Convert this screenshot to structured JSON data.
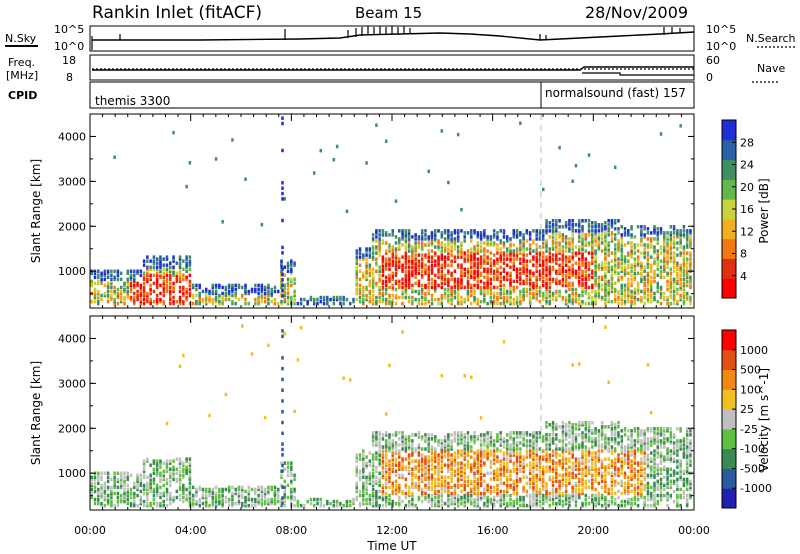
{
  "header": {
    "station": "Rankin Inlet (fitACF)",
    "beam": "Beam 15",
    "date": "28/Nov/2009"
  },
  "panels": {
    "nsky": {
      "left_label": "N.Sky",
      "right_label": "N.Search",
      "ticks_left": [
        "10^5",
        "10^0"
      ],
      "ticks_right": [
        "10^5",
        "10^0"
      ]
    },
    "freq": {
      "left_label_1": "Freq.",
      "left_label_2": "[MHz]",
      "right_label": "Nave",
      "ticks_left": [
        "18",
        "8"
      ],
      "ticks_right": [
        "60",
        "0"
      ]
    },
    "cpid": {
      "label": "CPID",
      "segments": [
        {
          "name": "themis 3300",
          "start_hour": 0
        },
        {
          "name": "normalsound (fast) 157",
          "start_hour": 18
        }
      ]
    }
  },
  "colors": {
    "power_scale": [
      "#1f2fd6",
      "#2a60a8",
      "#3f8f60",
      "#62b84a",
      "#c8d23a",
      "#f0b020",
      "#f07a10",
      "#e03010",
      "#ff0000"
    ],
    "velocity_scale": [
      "#2020b0",
      "#2a5aa0",
      "#3a8a55",
      "#60c040",
      "#c0c0c0",
      "#f0c020",
      "#f08a10",
      "#e05010",
      "#ff0000"
    ]
  },
  "chart_data": [
    {
      "type": "heatmap",
      "name": "power",
      "xlabel": "",
      "ylabel": "Slant Range [km]",
      "colorbar_label": "Power [dB]",
      "colorbar_ticks": [
        "28",
        "24",
        "20",
        "16",
        "12",
        "8",
        "4"
      ],
      "x_ticks": [
        "00:00",
        "04:00",
        "08:00",
        "12:00",
        "16:00",
        "20:00",
        "00:00"
      ],
      "y_ticks": [
        "1000",
        "2000",
        "3000",
        "4000"
      ],
      "xlim": [
        0,
        24
      ],
      "ylim": [
        180,
        4500
      ]
    },
    {
      "type": "heatmap",
      "name": "velocity",
      "xlabel": "Time UT",
      "ylabel": "Slant Range [km]",
      "colorbar_label": "Velocity [m s^-1]",
      "colorbar_ticks": [
        "1000",
        "500",
        "100",
        "25",
        "-25",
        "-100",
        "-500",
        "-1000"
      ],
      "x_ticks": [
        "00:00",
        "04:00",
        "08:00",
        "12:00",
        "16:00",
        "20:00",
        "00:00"
      ],
      "y_ticks": [
        "1000",
        "2000",
        "3000",
        "4000"
      ],
      "xlim": [
        0,
        24
      ],
      "ylim": [
        180,
        4500
      ]
    }
  ]
}
